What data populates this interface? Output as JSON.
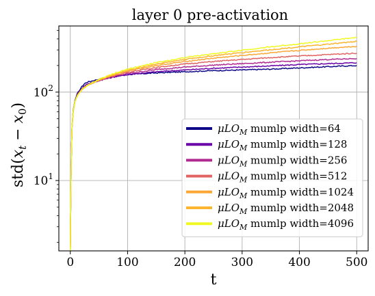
{
  "chart_data": {
    "type": "line",
    "title": "layer 0 pre-activation",
    "xlabel": "t",
    "ylabel": "std(x_t - x_0)",
    "ylabel_parts": {
      "prefix": "std(",
      "x": "x",
      "t": "t",
      "minus": " − ",
      "x0": "x",
      "zero": "0",
      "suffix": ")"
    },
    "xlim": [
      -20,
      520
    ],
    "ylim": [
      1.6,
      560
    ],
    "yscale": "log",
    "xticks": [
      0,
      100,
      200,
      300,
      400,
      500
    ],
    "xtick_labels": [
      "0",
      "100",
      "200",
      "300",
      "400",
      "500"
    ],
    "yticks": [
      10,
      100
    ],
    "ytick_labels": [
      {
        "base": "10",
        "exp": "1"
      },
      {
        "base": "10",
        "exp": "2"
      }
    ],
    "grid": true,
    "legend_position": "lower-right",
    "legend_prefix": "μLO",
    "legend_subscript": "M",
    "series": [
      {
        "name": "mumlp width=64",
        "color": "#0d0887",
        "x": [
          0,
          1,
          2,
          3,
          5,
          8,
          12,
          16,
          20,
          25,
          30,
          40,
          50,
          75,
          100,
          150,
          200,
          250,
          300,
          350,
          400,
          450,
          500
        ],
        "values": [
          1.6,
          8,
          22,
          40,
          62,
          80,
          95,
          105,
          115,
          125,
          130,
          135,
          140,
          150,
          158,
          165,
          170,
          175,
          178,
          182,
          188,
          194,
          200
        ]
      },
      {
        "name": "mumlp width=128",
        "color": "#6a00a8",
        "x": [
          0,
          1,
          2,
          3,
          5,
          8,
          12,
          16,
          20,
          25,
          30,
          40,
          50,
          75,
          100,
          150,
          200,
          250,
          300,
          350,
          400,
          450,
          500
        ],
        "values": [
          1.6,
          8,
          22,
          40,
          60,
          78,
          92,
          102,
          110,
          118,
          124,
          130,
          135,
          148,
          158,
          170,
          178,
          186,
          192,
          198,
          205,
          210,
          215
        ]
      },
      {
        "name": "mumlp width=256",
        "color": "#b12a90",
        "x": [
          0,
          1,
          2,
          3,
          5,
          8,
          12,
          16,
          20,
          25,
          30,
          40,
          50,
          75,
          100,
          150,
          200,
          250,
          300,
          350,
          400,
          450,
          500
        ],
        "values": [
          1.6,
          8,
          22,
          40,
          60,
          78,
          92,
          100,
          108,
          115,
          120,
          128,
          135,
          150,
          162,
          180,
          192,
          202,
          210,
          218,
          226,
          234,
          240
        ]
      },
      {
        "name": "mumlp width=512",
        "color": "#e16462",
        "x": [
          0,
          1,
          2,
          3,
          5,
          8,
          12,
          16,
          20,
          25,
          30,
          40,
          50,
          75,
          100,
          150,
          200,
          250,
          300,
          350,
          400,
          450,
          500
        ],
        "values": [
          1.6,
          8,
          22,
          40,
          60,
          78,
          92,
          100,
          107,
          114,
          120,
          128,
          136,
          153,
          168,
          190,
          208,
          222,
          234,
          246,
          256,
          266,
          276
        ]
      },
      {
        "name": "mumlp width=1024",
        "color": "#fca636",
        "x": [
          0,
          1,
          2,
          3,
          5,
          8,
          12,
          16,
          20,
          25,
          30,
          40,
          50,
          75,
          100,
          150,
          200,
          250,
          300,
          350,
          400,
          450,
          500
        ],
        "values": [
          1.6,
          8,
          22,
          40,
          60,
          78,
          90,
          99,
          106,
          113,
          119,
          128,
          137,
          156,
          173,
          200,
          222,
          242,
          260,
          278,
          296,
          314,
          330
        ]
      },
      {
        "name": "mumlp width=2048",
        "color": "#fdb42f",
        "x": [
          0,
          1,
          2,
          3,
          5,
          8,
          12,
          16,
          20,
          25,
          30,
          40,
          50,
          75,
          100,
          150,
          200,
          250,
          300,
          350,
          400,
          450,
          500
        ],
        "values": [
          1.6,
          8,
          22,
          40,
          60,
          78,
          90,
          99,
          106,
          113,
          119,
          128,
          138,
          158,
          177,
          208,
          235,
          258,
          280,
          302,
          325,
          348,
          375
        ]
      },
      {
        "name": "mumlp width=4096",
        "color": "#f0f921",
        "x": [
          0,
          1,
          2,
          3,
          5,
          8,
          12,
          16,
          20,
          25,
          30,
          40,
          50,
          75,
          100,
          150,
          200,
          250,
          300,
          350,
          400,
          450,
          500
        ],
        "values": [
          1.6,
          8,
          22,
          40,
          60,
          78,
          90,
          99,
          106,
          113,
          119,
          129,
          139,
          161,
          182,
          216,
          246,
          272,
          298,
          325,
          352,
          382,
          415
        ]
      }
    ]
  }
}
